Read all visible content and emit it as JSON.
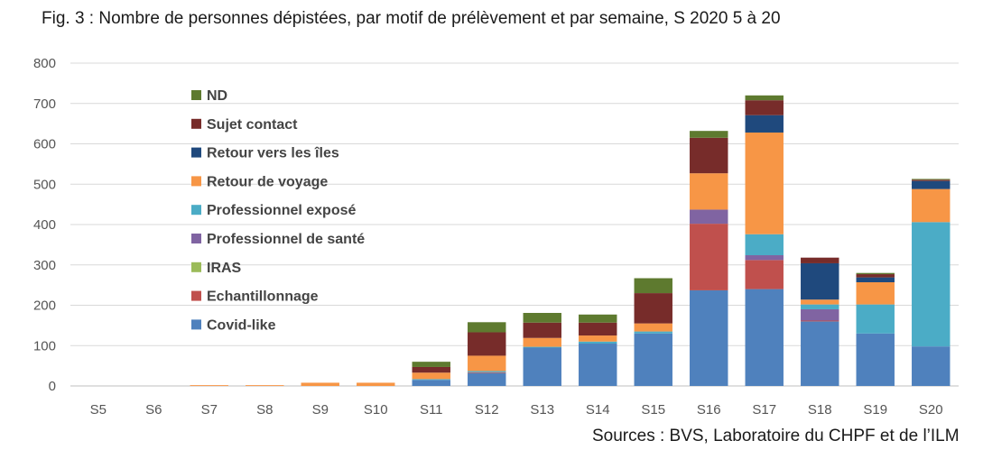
{
  "title": "Fig. 3 : Nombre de personnes dépistées, par motif de prélèvement et par semaine, S 2020 5 à 20",
  "source": "Sources : BVS, Laboratoire du CHPF et de l’ILM",
  "chart_data": {
    "type": "bar",
    "stacked": true,
    "title": "Fig. 3 : Nombre de personnes dépistées, par motif de prélèvement et par semaine, S 2020 5 à 20",
    "xlabel": "",
    "ylabel": "",
    "ylim": [
      0,
      800
    ],
    "yticks": [
      0,
      100,
      200,
      300,
      400,
      500,
      600,
      700,
      800
    ],
    "grid": true,
    "legend_position": "top-left-inside",
    "categories": [
      "S5",
      "S6",
      "S7",
      "S8",
      "S9",
      "S10",
      "S11",
      "S12",
      "S13",
      "S14",
      "S15",
      "S16",
      "S17",
      "S18",
      "S19",
      "S20"
    ],
    "series": [
      {
        "name": "Covid-like",
        "color": "#4f81bd",
        "values": [
          0,
          0,
          0,
          0,
          0,
          0,
          15,
          32,
          95,
          105,
          130,
          237,
          240,
          160,
          130,
          98
        ]
      },
      {
        "name": "Echantillonnage",
        "color": "#c0504d",
        "values": [
          0,
          0,
          0,
          0,
          0,
          0,
          0,
          2,
          0,
          0,
          0,
          165,
          72,
          2,
          0,
          0
        ]
      },
      {
        "name": "IRAS",
        "color": "#9bbb59",
        "values": [
          0,
          0,
          0,
          0,
          0,
          0,
          0,
          0,
          0,
          0,
          0,
          0,
          0,
          0,
          0,
          0
        ]
      },
      {
        "name": "Professionnel de santé",
        "color": "#8064a2",
        "values": [
          0,
          0,
          0,
          0,
          0,
          0,
          0,
          0,
          0,
          0,
          0,
          35,
          12,
          28,
          0,
          0
        ]
      },
      {
        "name": "Professionnel exposé",
        "color": "#4bacc6",
        "values": [
          0,
          0,
          0,
          0,
          0,
          0,
          2,
          3,
          2,
          5,
          5,
          0,
          52,
          12,
          72,
          308
        ]
      },
      {
        "name": "Retour de voyage",
        "color": "#f79646",
        "values": [
          0,
          0,
          2,
          2,
          8,
          8,
          16,
          38,
          22,
          15,
          20,
          90,
          252,
          12,
          55,
          82
        ]
      },
      {
        "name": "Retour vers les îles",
        "color": "#1f497d",
        "values": [
          0,
          0,
          0,
          0,
          0,
          0,
          0,
          0,
          0,
          0,
          0,
          0,
          43,
          90,
          12,
          20
        ]
      },
      {
        "name": "Sujet contact",
        "color": "#772c2a",
        "values": [
          0,
          0,
          0,
          0,
          0,
          0,
          14,
          58,
          38,
          32,
          75,
          88,
          37,
          14,
          8,
          3
        ]
      },
      {
        "name": "ND",
        "color": "#5e7a2f",
        "values": [
          0,
          0,
          0,
          0,
          0,
          0,
          13,
          25,
          24,
          20,
          37,
          17,
          12,
          0,
          3,
          2
        ]
      }
    ]
  }
}
